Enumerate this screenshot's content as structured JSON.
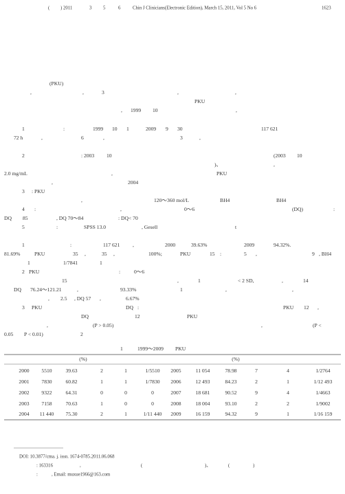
{
  "header": [
    "(",
    ") 2011",
    "3",
    "5",
    "6",
    "Chin J Clinicians(Electronic Edition), March 15, 2011, Vol 5 No 6",
    "1623"
  ],
  "body": [
    [
      "(PKU)"
    ],
    [
      ",",
      ",",
      "3",
      ",",
      ","
    ],
    [
      "PKU"
    ],
    [
      ",",
      "1999",
      "10",
      ","
    ],
    [
      "1",
      ":",
      "1999",
      "10",
      "1",
      "2009",
      "9",
      "30",
      "117 621"
    ],
    [
      "72 h",
      ",",
      "6",
      ",",
      "3",
      ","
    ],
    [
      "2",
      ": 2003",
      "10",
      "(2003",
      "10"
    ],
    [
      ")、",
      ","
    ],
    [
      "2.0 mg/mL",
      ",",
      "PKU"
    ],
    [
      ",",
      "2004"
    ],
    [
      "3",
      ": PKU"
    ],
    [
      ",",
      "120～360 mol/L",
      "BH4",
      "BH4"
    ],
    [
      "4",
      ":",
      ",",
      "0～6",
      "(DQ)",
      ":"
    ],
    [
      "DQ",
      "85",
      ", DQ 70～84",
      ": DQ< 70"
    ],
    [
      "5",
      ":",
      "SPSS 13.0",
      ", Gesell",
      "t"
    ],
    [
      "1",
      ":",
      "117 621",
      ",",
      "2000",
      "39.63%",
      "2009",
      "94.32%."
    ],
    [
      "81.69%",
      "PKU",
      "35",
      ",",
      "35",
      ",",
      "100%;",
      "PKU",
      "15",
      ":",
      "5",
      ",",
      "9",
      ", BH4"
    ],
    [
      "1",
      "1/7841",
      "1"
    ],
    [
      "2",
      "PKU",
      ":",
      "0～6"
    ],
    [
      "15",
      ",",
      "1",
      "< 2 SD,",
      "14",
      ","
    ],
    [
      "DQ",
      "76.24～121.21",
      ",",
      "93.33%",
      "1",
      ",",
      ","
    ],
    [
      ",",
      "2.5",
      ", DQ 57",
      ",",
      "6.67%"
    ],
    [
      "3",
      "PKU",
      "DQ",
      ":",
      "PKU",
      "12",
      ","
    ],
    [
      "DQ",
      "12",
      "PKU"
    ],
    [
      ",",
      "(P > 0.05)",
      ",",
      "(P <"
    ],
    [
      "0.05",
      "P < 0.01)",
      "2"
    ]
  ],
  "table_title": [
    "1",
    "1999～2009",
    "PKU"
  ],
  "table": {
    "header": [
      "(%)",
      "(%)"
    ],
    "rows": [
      [
        "2000",
        "5510",
        "39.63",
        "2",
        "1",
        "1/5510",
        "2005",
        "11 054",
        "78.98",
        "7",
        "4",
        "1/2764"
      ],
      [
        "2001",
        "7830",
        "60.82",
        "1",
        "1",
        "1/7830",
        "2006",
        "12 493",
        "84.23",
        "2",
        "1",
        "1/12 493"
      ],
      [
        "2002",
        "9322",
        "64.31",
        "0",
        "0",
        "0",
        "2007",
        "18 681",
        "90.52",
        "9",
        "4",
        "1/4663"
      ],
      [
        "2003",
        "7158",
        "70.63",
        "1",
        "0",
        "0",
        "2008",
        "18 004",
        "93.10",
        "2",
        "2",
        "1/9002"
      ],
      [
        "2004",
        "11 440",
        "75.30",
        "2",
        "1",
        "1/11 440",
        "2009",
        "16 159",
        "94.32",
        "9",
        "1",
        "1/16 159"
      ]
    ]
  },
  "footer": [
    [
      "DOI: 10.3877/cma. j. issn. 1674-0785.2011.06.068"
    ],
    [
      ": 163316",
      ",",
      "(",
      ")、",
      "(",
      ")"
    ],
    [
      ":",
      ", Email: muxue1966@163.com"
    ]
  ]
}
